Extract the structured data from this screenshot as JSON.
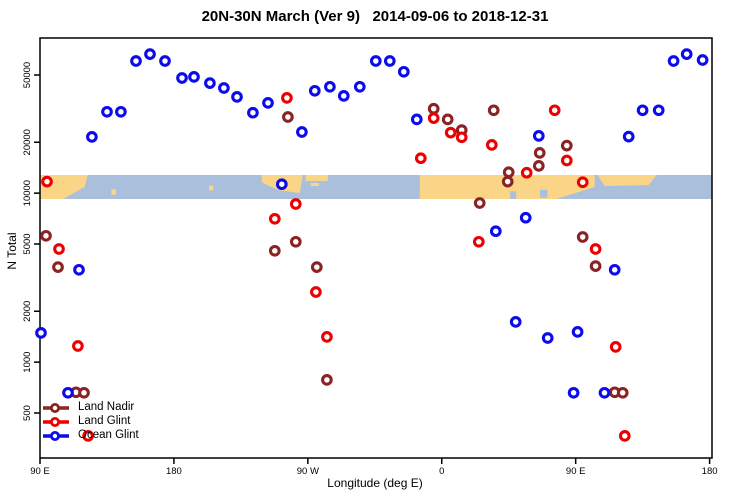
{
  "title": "20N-30N March (Ver 9)   2014-09-06 to 2018-12-31",
  "chart_data": {
    "type": "scatter",
    "title": "20N-30N March (Ver 9)   2014-09-06 to 2018-12-31",
    "xlabel": "Longitude (deg E)",
    "ylabel": "N Total",
    "x_scale": "linear",
    "y_scale": "log10",
    "xlim": [
      90,
      540
    ],
    "ylim": [
      300,
      90000
    ],
    "grid": false,
    "x_ticks": [
      {
        "label": "90 E",
        "lon": 90
      },
      {
        "label": "180",
        "lon": 180
      },
      {
        "label": "90 W",
        "lon": 270
      },
      {
        "label": "0",
        "lon": 360
      },
      {
        "label": "90 E",
        "lon": 450
      },
      {
        "label": "180",
        "lon": 540
      }
    ],
    "y_ticks": [
      {
        "label": "500",
        "value": 500
      },
      {
        "label": "1000",
        "value": 1000
      },
      {
        "label": "2000",
        "value": 2000
      },
      {
        "label": "5000",
        "value": 5000
      },
      {
        "label": "10000",
        "value": 10000
      },
      {
        "label": "20000",
        "value": 20000
      },
      {
        "label": "50000",
        "value": 50000
      }
    ],
    "map_band": {
      "description": "world map strip of the 20N-30N latitude band drawn across the plot",
      "top_value": 12800,
      "bottom_value": 9230,
      "ocean_color": "#A9BFDB",
      "land_color": "#FAD588",
      "land_polygons": [
        [
          [
            90,
            0
          ],
          [
            122,
            0
          ],
          [
            120,
            0.5
          ],
          [
            105.5,
            1
          ],
          [
            90,
            1
          ]
        ],
        [
          [
            138,
            0.6
          ],
          [
            141,
            0.6
          ],
          [
            141,
            0.82
          ],
          [
            138,
            0.82
          ]
        ],
        [
          [
            203.5,
            0.45
          ],
          [
            206.5,
            0.45
          ],
          [
            206.5,
            0.64
          ],
          [
            203.5,
            0.64
          ]
        ],
        [
          [
            239,
            0
          ],
          [
            266.6,
            0
          ],
          [
            264.5,
            0.75
          ],
          [
            250,
            0.63
          ],
          [
            239,
            0.3
          ]
        ],
        [
          [
            268.6,
            0
          ],
          [
            283.4,
            0
          ],
          [
            283.4,
            0.25
          ],
          [
            268.6,
            0.25
          ]
        ],
        [
          [
            272,
            0.33
          ],
          [
            277.5,
            0.33
          ],
          [
            277.5,
            0.46
          ],
          [
            272,
            0.46
          ]
        ],
        [
          [
            345.2,
            0
          ],
          [
            462.8,
            0
          ],
          [
            462.8,
            0.5
          ],
          [
            437,
            1
          ],
          [
            345.2,
            1
          ]
        ],
        [
          [
            464.8,
            0
          ],
          [
            504.4,
            0
          ],
          [
            499,
            0.42
          ],
          [
            469.5,
            0.46
          ]
        ]
      ],
      "ocean_notches": [
        [
          [
            406,
            0.68
          ],
          [
            410,
            0.68
          ],
          [
            410,
            1
          ],
          [
            406,
            1
          ]
        ],
        [
          [
            426,
            0.62
          ],
          [
            431,
            0.62
          ],
          [
            431,
            0.95
          ],
          [
            426,
            0.95
          ]
        ]
      ]
    },
    "legend": {
      "position": "bottom-left"
    },
    "series": [
      {
        "name": "Land Nadir",
        "color": "#8B2323",
        "points": [
          [
            256.6,
            28200
          ],
          [
            354.6,
            31600
          ],
          [
            364.0,
            27300
          ],
          [
            373.4,
            23600
          ],
          [
            394.9,
            30900
          ],
          [
            425.8,
            17300
          ],
          [
            444.0,
            19100
          ],
          [
            425.2,
            14500
          ],
          [
            405.0,
            13300
          ],
          [
            404.3,
            11700
          ],
          [
            385.5,
            8740
          ],
          [
            94.0,
            5590
          ],
          [
            102.1,
            3650
          ],
          [
            261.9,
            5150
          ],
          [
            247.8,
            4560
          ],
          [
            276.0,
            3650
          ],
          [
            282.8,
            785
          ],
          [
            454.7,
            5500
          ],
          [
            463.4,
            3700
          ],
          [
            476.2,
            663
          ],
          [
            481.6,
            658
          ],
          [
            114.2,
            663
          ],
          [
            119.6,
            658
          ]
        ]
      },
      {
        "name": "Land Glint",
        "color": "#EE0000",
        "points": [
          [
            255.9,
            36600
          ],
          [
            354.6,
            27800
          ],
          [
            366.0,
            22800
          ],
          [
            373.4,
            21400
          ],
          [
            393.6,
            19300
          ],
          [
            345.9,
            16100
          ],
          [
            435.9,
            30900
          ],
          [
            444.0,
            15600
          ],
          [
            417.1,
            13200
          ],
          [
            94.7,
            11700
          ],
          [
            261.9,
            8620
          ],
          [
            247.8,
            7050
          ],
          [
            275.4,
            2600
          ],
          [
            282.8,
            1410
          ],
          [
            454.7,
            11600
          ],
          [
            384.9,
            5150
          ],
          [
            463.4,
            4670
          ],
          [
            476.9,
            1230
          ],
          [
            115.5,
            1245
          ],
          [
            122.3,
            366
          ],
          [
            483.0,
            366
          ],
          [
            102.8,
            4670
          ]
        ]
      },
      {
        "name": "Ocean Glint",
        "color": "#0B0BEE",
        "points": [
          [
            154.5,
            60500
          ],
          [
            163.9,
            66500
          ],
          [
            174.0,
            60500
          ],
          [
            185.4,
            48000
          ],
          [
            193.5,
            48700
          ],
          [
            204.2,
            44800
          ],
          [
            213.6,
            41900
          ],
          [
            222.4,
            37100
          ],
          [
            233.1,
            29900
          ],
          [
            243.2,
            34200
          ],
          [
            135.0,
            30300
          ],
          [
            144.4,
            30300
          ],
          [
            124.9,
            21500
          ],
          [
            266.0,
            23000
          ],
          [
            274.7,
            40300
          ],
          [
            284.8,
            42600
          ],
          [
            294.2,
            37600
          ],
          [
            304.9,
            42600
          ],
          [
            315.7,
            60500
          ],
          [
            325.1,
            60500
          ],
          [
            334.5,
            52200
          ],
          [
            343.2,
            27300
          ],
          [
            252.5,
            11300
          ],
          [
            396.3,
            5950
          ],
          [
            416.4,
            7150
          ],
          [
            425.2,
            21800
          ],
          [
            485.6,
            21600
          ],
          [
            495.0,
            30900
          ],
          [
            505.8,
            30900
          ],
          [
            515.8,
            60500
          ],
          [
            524.6,
            66500
          ],
          [
            535.3,
            61300
          ],
          [
            476.2,
            3520
          ],
          [
            409.7,
            1730
          ],
          [
            451.3,
            1510
          ],
          [
            431.2,
            1390
          ],
          [
            90.7,
            1490
          ],
          [
            108.8,
            658
          ],
          [
            116.2,
            3520
          ],
          [
            448.6,
            658
          ],
          [
            469.4,
            658
          ]
        ]
      }
    ]
  }
}
